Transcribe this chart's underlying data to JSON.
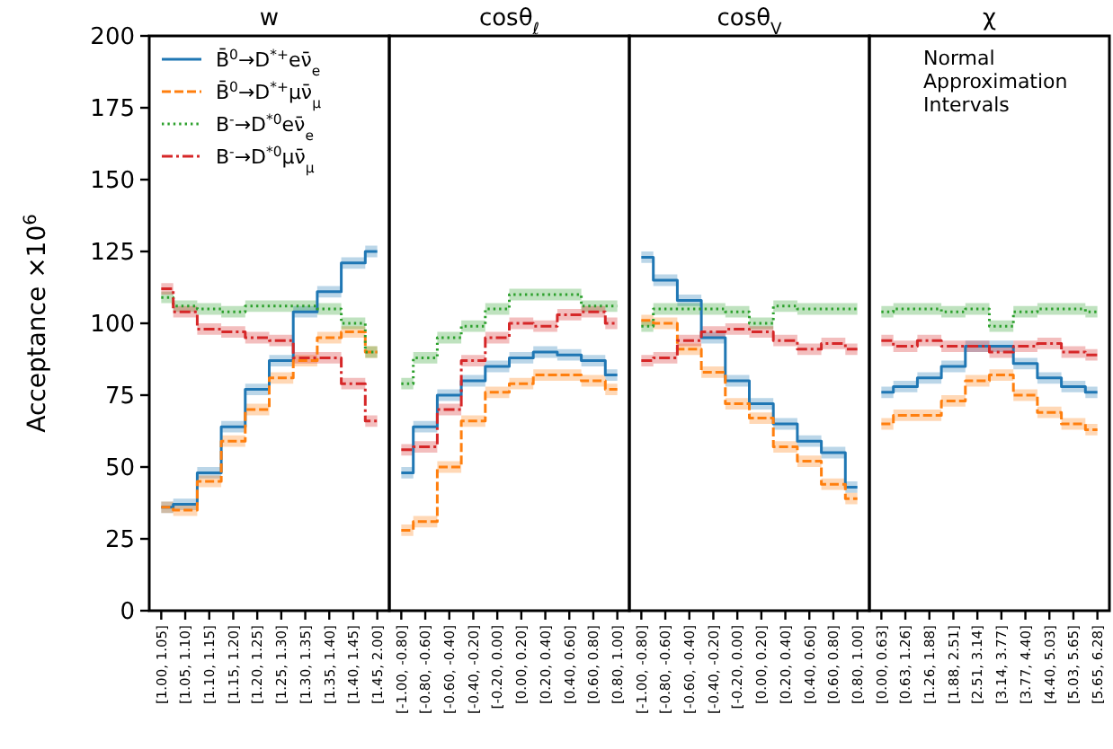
{
  "chart_data": [
    {
      "type": "step",
      "title": "w",
      "ylabel": "Acceptance ×10$^{6}$",
      "ylim": [
        0,
        200
      ],
      "yticks": [
        0,
        25,
        50,
        75,
        100,
        125,
        150,
        175,
        200
      ],
      "legend": "top left",
      "grid": false,
      "categories": [
        "[1.00, 1.05]",
        "[1.05, 1.10]",
        "[1.10, 1.15]",
        "[1.15, 1.20]",
        "[1.20, 1.25]",
        "[1.25, 1.30]",
        "[1.30, 1.35]",
        "[1.35, 1.40]",
        "[1.40, 1.45]",
        "[1.45, 2.00]"
      ],
      "series": [
        {
          "name": "B̄$^{0}$→D$^{*+}$eν̄$_{e}$",
          "color": "#1f77b4",
          "line_style": "solid",
          "values": [
            36,
            37,
            48,
            64,
            77,
            87,
            104,
            111,
            121,
            125
          ],
          "lower": [
            34,
            35,
            46,
            62,
            75,
            85,
            102,
            109,
            119,
            123
          ],
          "upper": [
            38,
            39,
            50,
            66,
            79,
            89,
            106,
            113,
            123,
            127
          ]
        },
        {
          "name": "B̄$^{0}$→D$^{*+}$μν̄$_{μ}$",
          "color": "#ff7f0e",
          "line_style": "dashed",
          "values": [
            36,
            35,
            45,
            59,
            70,
            81,
            87,
            95,
            97,
            90
          ],
          "lower": [
            34,
            33,
            43,
            57,
            68,
            79,
            85,
            93,
            95,
            88
          ],
          "upper": [
            38,
            37,
            47,
            61,
            72,
            83,
            89,
            97,
            99,
            92
          ]
        },
        {
          "name": "B$^{-}$→D$^{*0}$eν̄$_{e}$",
          "color": "#2ca02c",
          "line_style": "dotted",
          "values": [
            109,
            106,
            105,
            104,
            106,
            106,
            106,
            105,
            100,
            90
          ],
          "lower": [
            107,
            104,
            103,
            102,
            104,
            104,
            104,
            103,
            98,
            88
          ],
          "upper": [
            111,
            108,
            107,
            106,
            108,
            108,
            108,
            107,
            102,
            92
          ]
        },
        {
          "name": "B$^{-}$→D$^{*0}$μν̄$_{μ}$",
          "color": "#d62728",
          "line_style": "dashdot",
          "values": [
            112,
            104,
            98,
            97,
            95,
            94,
            88,
            88,
            79,
            66
          ],
          "lower": [
            110,
            102,
            96,
            95,
            93,
            92,
            86,
            86,
            77,
            64
          ],
          "upper": [
            114,
            106,
            100,
            99,
            97,
            96,
            90,
            90,
            81,
            68
          ]
        }
      ]
    },
    {
      "type": "step",
      "title": "cosθ$_{ℓ}$",
      "ylim": [
        0,
        200
      ],
      "tick_labels": "x",
      "categories": [
        "[-1.00, -0.80]",
        "[-0.80, -0.60]",
        "[-0.60, -0.40]",
        "[-0.40, -0.20]",
        "[-0.20, 0.00]",
        "[0.00, 0.20]",
        "[0.20, 0.40]",
        "[0.40, 0.60]",
        "[0.60, 0.80]",
        "[0.80, 1.00]"
      ],
      "series": [
        {
          "color": "#1f77b4",
          "line_style": "solid",
          "values": [
            48,
            64,
            75,
            80,
            85,
            88,
            90,
            89,
            87,
            82
          ],
          "lower": [
            46,
            62,
            73,
            78,
            83,
            86,
            88,
            87,
            85,
            80
          ],
          "upper": [
            50,
            66,
            77,
            82,
            87,
            90,
            92,
            91,
            89,
            84
          ]
        },
        {
          "color": "#ff7f0e",
          "line_style": "dashed",
          "values": [
            28,
            31,
            50,
            66,
            76,
            79,
            82,
            82,
            80,
            77
          ],
          "lower": [
            26,
            29,
            48,
            64,
            74,
            77,
            80,
            80,
            78,
            75
          ],
          "upper": [
            30,
            33,
            52,
            68,
            78,
            81,
            84,
            84,
            82,
            79
          ]
        },
        {
          "color": "#2ca02c",
          "line_style": "dotted",
          "values": [
            79,
            88,
            95,
            99,
            105,
            110,
            110,
            110,
            106,
            106
          ],
          "lower": [
            77,
            86,
            93,
            97,
            103,
            108,
            108,
            108,
            104,
            104
          ],
          "upper": [
            81,
            90,
            97,
            101,
            107,
            112,
            112,
            112,
            108,
            108
          ]
        },
        {
          "color": "#d62728",
          "line_style": "dashdot",
          "values": [
            56,
            57,
            70,
            87,
            95,
            100,
            99,
            103,
            104,
            100
          ],
          "lower": [
            54,
            55,
            68,
            85,
            93,
            98,
            97,
            101,
            102,
            98
          ],
          "upper": [
            58,
            59,
            72,
            89,
            97,
            102,
            101,
            105,
            106,
            102
          ]
        }
      ]
    },
    {
      "type": "step",
      "title": "cosθ$_{V}$",
      "ylim": [
        0,
        200
      ],
      "tick_labels": "x",
      "categories": [
        "[-1.00, -0.80]",
        "[-0.80, -0.60]",
        "[-0.60, -0.40]",
        "[-0.40, -0.20]",
        "[-0.20, 0.00]",
        "[0.00, 0.20]",
        "[0.20, 0.40]",
        "[0.40, 0.60]",
        "[0.60, 0.80]",
        "[0.80, 1.00]"
      ],
      "series": [
        {
          "color": "#1f77b4",
          "line_style": "solid",
          "values": [
            123,
            115,
            108,
            95,
            80,
            72,
            65,
            59,
            55,
            43
          ],
          "lower": [
            121,
            113,
            106,
            93,
            78,
            70,
            63,
            57,
            53,
            41
          ],
          "upper": [
            125,
            117,
            110,
            97,
            82,
            74,
            67,
            61,
            57,
            45
          ]
        },
        {
          "color": "#ff7f0e",
          "line_style": "dashed",
          "values": [
            101,
            100,
            91,
            83,
            72,
            67,
            57,
            52,
            44,
            39
          ],
          "lower": [
            99,
            98,
            89,
            81,
            70,
            65,
            55,
            50,
            42,
            37
          ],
          "upper": [
            103,
            102,
            93,
            85,
            74,
            69,
            59,
            54,
            46,
            41
          ]
        },
        {
          "color": "#2ca02c",
          "line_style": "dotted",
          "values": [
            99,
            105,
            105,
            105,
            104,
            100,
            106,
            105,
            105,
            105
          ],
          "lower": [
            97,
            103,
            103,
            103,
            102,
            98,
            104,
            103,
            103,
            103
          ],
          "upper": [
            101,
            107,
            107,
            107,
            106,
            102,
            108,
            107,
            107,
            107
          ]
        },
        {
          "color": "#d62728",
          "line_style": "dashdot",
          "values": [
            87,
            88,
            94,
            97,
            98,
            97,
            94,
            91,
            93,
            91
          ],
          "lower": [
            85,
            86,
            92,
            95,
            96,
            95,
            92,
            89,
            91,
            89
          ],
          "upper": [
            89,
            90,
            96,
            99,
            100,
            99,
            96,
            93,
            95,
            93
          ]
        }
      ]
    },
    {
      "type": "step",
      "title": "χ",
      "ylim": [
        0,
        200
      ],
      "tick_labels": "x",
      "annotations": [
        "Normal Approximation Intervals"
      ],
      "categories": [
        "[0.00, 0.63]",
        "[0.63, 1.26]",
        "[1.26, 1.88]",
        "[1.88, 2.51]",
        "[2.51, 3.14]",
        "[3.14, 3.77]",
        "[3.77, 4.40]",
        "[4.40, 5.03]",
        "[5.03, 5.65]",
        "[5.65, 6.28]"
      ],
      "series": [
        {
          "color": "#1f77b4",
          "line_style": "solid",
          "values": [
            76,
            78,
            81,
            85,
            92,
            92,
            86,
            81,
            78,
            76
          ],
          "lower": [
            74,
            76,
            79,
            83,
            90,
            90,
            84,
            79,
            76,
            74
          ],
          "upper": [
            78,
            80,
            83,
            87,
            94,
            94,
            88,
            83,
            80,
            78
          ]
        },
        {
          "color": "#ff7f0e",
          "line_style": "dashed",
          "values": [
            65,
            68,
            68,
            73,
            80,
            82,
            75,
            69,
            65,
            63
          ],
          "lower": [
            63,
            66,
            66,
            71,
            78,
            80,
            73,
            67,
            63,
            61
          ],
          "upper": [
            67,
            70,
            70,
            75,
            82,
            84,
            77,
            71,
            67,
            65
          ]
        },
        {
          "color": "#2ca02c",
          "line_style": "dotted",
          "values": [
            104,
            105,
            105,
            104,
            105,
            99,
            104,
            105,
            105,
            104
          ],
          "lower": [
            102,
            103,
            103,
            102,
            103,
            97,
            102,
            103,
            103,
            102
          ],
          "upper": [
            106,
            107,
            107,
            106,
            107,
            101,
            106,
            107,
            107,
            106
          ]
        },
        {
          "color": "#d62728",
          "line_style": "dashdot",
          "values": [
            94,
            92,
            94,
            92,
            92,
            90,
            92,
            93,
            90,
            89
          ],
          "lower": [
            92,
            90,
            92,
            90,
            90,
            88,
            90,
            91,
            88,
            87
          ],
          "upper": [
            96,
            94,
            96,
            94,
            94,
            92,
            94,
            95,
            92,
            91
          ]
        }
      ]
    }
  ]
}
